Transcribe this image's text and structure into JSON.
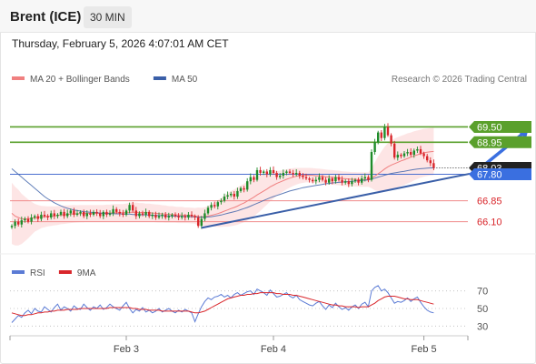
{
  "header": {
    "instrument": "Brent (ICE)",
    "timeframe": "30 MIN"
  },
  "datetime": "Thursday, February 5, 2026 4:07:01 AM CET",
  "colors": {
    "up": "#1e8c2a",
    "down": "#d9262b",
    "ma20": "#f08080",
    "band_fill": "#fde0e0",
    "ma50": "#3a5fa8",
    "resistance": "#5aa02c",
    "support": "#f08a8a",
    "pivot": "#4a6fd0",
    "trendline": "#3a5fa8",
    "rsi": "#5b7bd5",
    "rsi_ma": "#d9262b",
    "last_price": "#222222",
    "pivot_tag": "#3a6fe0"
  },
  "chart_data": [
    {
      "type": "candlestick",
      "legend": [
        {
          "label": "MA 20 + Bollinger Bands",
          "color": "#f08080"
        },
        {
          "label": "MA 50",
          "color": "#3a5fa8"
        }
      ],
      "credit": "Research © 2026 Trading Central",
      "x_ticks": [
        "Feb 3",
        "Feb 4",
        "Feb 5"
      ],
      "ylim": [
        65.5,
        70.2
      ],
      "levels": [
        {
          "value": 69.5,
          "label": "69.50",
          "kind": "resistance"
        },
        {
          "value": 68.95,
          "label": "68.95",
          "kind": "resistance"
        },
        {
          "value": 68.03,
          "label": "68.03",
          "kind": "last"
        },
        {
          "value": 67.8,
          "label": "67.80",
          "kind": "pivot"
        },
        {
          "value": 66.85,
          "label": "66.85",
          "kind": "support"
        },
        {
          "value": 66.1,
          "label": "66.10",
          "kind": "support"
        }
      ],
      "trendline": [
        [
          58,
          65.88
        ],
        [
          140,
          67.82
        ]
      ],
      "arrow": [
        [
          142,
          67.9
        ],
        [
          158,
          69.45
        ]
      ],
      "closes": [
        65.95,
        66.1,
        66.0,
        66.15,
        66.2,
        66.1,
        66.25,
        66.3,
        66.2,
        66.35,
        66.3,
        66.25,
        66.4,
        66.3,
        66.35,
        66.45,
        66.3,
        66.4,
        66.5,
        66.35,
        66.4,
        66.45,
        66.3,
        66.4,
        66.35,
        66.45,
        66.4,
        66.3,
        66.45,
        66.35,
        66.4,
        66.55,
        66.45,
        66.4,
        66.35,
        66.5,
        66.7,
        66.5,
        66.3,
        66.4,
        66.35,
        66.45,
        66.3,
        66.35,
        66.25,
        66.3,
        66.35,
        66.25,
        66.3,
        66.35,
        66.3,
        66.25,
        66.3,
        66.25,
        66.35,
        66.3,
        66.25,
        65.95,
        66.2,
        66.4,
        66.6,
        66.7,
        66.65,
        66.8,
        66.85,
        67.0,
        67.05,
        67.1,
        67.0,
        67.2,
        67.3,
        67.25,
        67.55,
        67.7,
        67.6,
        67.95,
        67.85,
        67.9,
        67.8,
        67.95,
        67.85,
        67.7,
        67.75,
        67.85,
        67.9,
        67.85,
        67.8,
        67.85,
        67.75,
        67.7,
        67.65,
        67.6,
        67.55,
        67.6,
        67.7,
        67.6,
        67.5,
        67.65,
        67.55,
        67.7,
        67.6,
        67.5,
        67.55,
        67.45,
        67.55,
        67.6,
        67.5,
        67.65,
        67.7,
        67.6,
        68.6,
        68.95,
        69.3,
        69.1,
        69.5,
        69.2,
        68.9,
        68.4,
        68.5,
        68.45,
        68.55,
        68.6,
        68.5,
        68.65,
        68.7,
        68.55,
        68.45,
        68.3,
        68.2,
        68.03
      ],
      "ma20": [
        66.4,
        66.3,
        66.25,
        66.2,
        66.2,
        66.2,
        66.22,
        66.24,
        66.25,
        66.27,
        66.28,
        66.29,
        66.3,
        66.31,
        66.32,
        66.34,
        66.35,
        66.36,
        66.37,
        66.38,
        66.38,
        66.39,
        66.39,
        66.4,
        66.4,
        66.4,
        66.4,
        66.4,
        66.4,
        66.41,
        66.41,
        66.42,
        66.42,
        66.42,
        66.42,
        66.43,
        66.44,
        66.44,
        66.44,
        66.43,
        66.43,
        66.42,
        66.42,
        66.41,
        66.4,
        66.39,
        66.38,
        66.37,
        66.36,
        66.36,
        66.35,
        66.34,
        66.34,
        66.33,
        66.33,
        66.32,
        66.31,
        66.28,
        66.27,
        66.28,
        66.3,
        66.33,
        66.36,
        66.39,
        66.43,
        66.48,
        66.52,
        66.57,
        66.61,
        66.66,
        66.72,
        66.77,
        66.84,
        66.91,
        66.98,
        67.06,
        67.13,
        67.2,
        67.27,
        67.35,
        67.41,
        67.47,
        67.52,
        67.57,
        67.62,
        67.66,
        67.7,
        67.73,
        67.75,
        67.76,
        67.77,
        67.77,
        67.76,
        67.75,
        67.74,
        67.73,
        67.71,
        67.7,
        67.69,
        67.68,
        67.67,
        67.65,
        67.64,
        67.63,
        67.62,
        67.62,
        67.61,
        67.61,
        67.61,
        67.61,
        67.66,
        67.73,
        67.82,
        67.9,
        67.99,
        68.07,
        68.13,
        68.18,
        68.23,
        68.28,
        68.32,
        68.37,
        68.41,
        68.46,
        68.5,
        68.54,
        68.57,
        68.59,
        68.61,
        68.62
      ],
      "band_width": [
        1.1,
        1.05,
        1.0,
        0.9,
        0.8,
        0.7,
        0.6,
        0.5,
        0.45,
        0.4,
        0.38,
        0.36,
        0.35,
        0.34,
        0.34,
        0.33,
        0.33,
        0.32,
        0.32,
        0.32,
        0.31,
        0.31,
        0.31,
        0.3,
        0.3,
        0.3,
        0.3,
        0.3,
        0.3,
        0.3,
        0.3,
        0.31,
        0.31,
        0.31,
        0.31,
        0.32,
        0.34,
        0.35,
        0.35,
        0.34,
        0.34,
        0.33,
        0.33,
        0.32,
        0.32,
        0.32,
        0.31,
        0.31,
        0.3,
        0.3,
        0.29,
        0.29,
        0.29,
        0.28,
        0.28,
        0.28,
        0.28,
        0.33,
        0.33,
        0.34,
        0.36,
        0.4,
        0.44,
        0.48,
        0.52,
        0.56,
        0.6,
        0.63,
        0.65,
        0.67,
        0.68,
        0.69,
        0.7,
        0.7,
        0.69,
        0.67,
        0.64,
        0.6,
        0.56,
        0.52,
        0.48,
        0.44,
        0.41,
        0.38,
        0.36,
        0.34,
        0.32,
        0.3,
        0.28,
        0.27,
        0.26,
        0.26,
        0.26,
        0.26,
        0.26,
        0.26,
        0.26,
        0.26,
        0.26,
        0.26,
        0.26,
        0.26,
        0.26,
        0.26,
        0.26,
        0.26,
        0.26,
        0.26,
        0.26,
        0.26,
        0.36,
        0.5,
        0.62,
        0.72,
        0.8,
        0.85,
        0.88,
        0.9,
        0.9,
        0.9,
        0.9,
        0.9,
        0.89,
        0.88,
        0.87,
        0.86,
        0.86,
        0.85,
        0.85,
        0.85
      ],
      "ma50": [
        68.0,
        67.9,
        67.8,
        67.7,
        67.6,
        67.5,
        67.4,
        67.3,
        67.2,
        67.1,
        67.0,
        66.92,
        66.85,
        66.78,
        66.72,
        66.67,
        66.62,
        66.58,
        66.55,
        66.52,
        66.5,
        66.48,
        66.46,
        66.45,
        66.44,
        66.43,
        66.42,
        66.41,
        66.4,
        66.4,
        66.39,
        66.39,
        66.38,
        66.38,
        66.37,
        66.37,
        66.37,
        66.36,
        66.36,
        66.35,
        66.35,
        66.34,
        66.34,
        66.33,
        66.33,
        66.32,
        66.32,
        66.31,
        66.31,
        66.3,
        66.3,
        66.3,
        66.29,
        66.29,
        66.28,
        66.28,
        66.27,
        66.26,
        66.26,
        66.26,
        66.27,
        66.28,
        66.3,
        66.32,
        66.34,
        66.37,
        66.4,
        66.43,
        66.46,
        66.49,
        66.53,
        66.57,
        66.61,
        66.66,
        66.71,
        66.76,
        66.81,
        66.86,
        66.91,
        66.96,
        67.0,
        67.04,
        67.08,
        67.12,
        67.16,
        67.2,
        67.23,
        67.26,
        67.29,
        67.32,
        67.34,
        67.36,
        67.38,
        67.4,
        67.42,
        67.44,
        67.46,
        67.47,
        67.49,
        67.5,
        67.51,
        67.52,
        67.53,
        67.54,
        67.55,
        67.56,
        67.57,
        67.58,
        67.59,
        67.6,
        67.63,
        67.66,
        67.7,
        67.73,
        67.77,
        67.8,
        67.83,
        67.85,
        67.87,
        67.89,
        67.91,
        67.93,
        67.95,
        67.97,
        67.99,
        68.0,
        68.01,
        68.02,
        68.03,
        68.03
      ]
    },
    {
      "type": "line",
      "legend": [
        {
          "label": "RSI",
          "color": "#5b7bd5"
        },
        {
          "label": "9MA",
          "color": "#d9262b"
        }
      ],
      "y_ticks": [
        "70",
        "50",
        "30"
      ],
      "ylim": [
        20,
        80
      ],
      "rsi": [
        34,
        38,
        42,
        40,
        45,
        48,
        44,
        50,
        47,
        46,
        52,
        49,
        46,
        51,
        55,
        48,
        52,
        50,
        47,
        53,
        50,
        49,
        55,
        51,
        48,
        52,
        50,
        54,
        49,
        51,
        55,
        52,
        50,
        48,
        53,
        57,
        50,
        45,
        49,
        47,
        51,
        46,
        48,
        45,
        47,
        50,
        46,
        48,
        50,
        47,
        45,
        48,
        46,
        49,
        47,
        45,
        35,
        44,
        52,
        58,
        62,
        60,
        63,
        64,
        66,
        63,
        65,
        62,
        66,
        68,
        65,
        67,
        69,
        70,
        66,
        72,
        70,
        68,
        65,
        71,
        67,
        63,
        64,
        66,
        68,
        64,
        62,
        65,
        60,
        58,
        56,
        54,
        53,
        56,
        58,
        53,
        49,
        54,
        51,
        56,
        52,
        49,
        51,
        48,
        52,
        54,
        50,
        55,
        57,
        52,
        70,
        74,
        76,
        70,
        72,
        68,
        62,
        56,
        58,
        57,
        59,
        62,
        58,
        61,
        63,
        57,
        52,
        48,
        46,
        45
      ],
      "rsi_ma": [
        45,
        44,
        43,
        42,
        42,
        43,
        43,
        44,
        45,
        45,
        46,
        46,
        47,
        47,
        48,
        48,
        48,
        49,
        49,
        49,
        49,
        50,
        50,
        50,
        50,
        50,
        50,
        50,
        50,
        50,
        51,
        51,
        51,
        51,
        51,
        51,
        51,
        50,
        50,
        49,
        49,
        49,
        48,
        48,
        48,
        48,
        47,
        47,
        47,
        47,
        47,
        47,
        47,
        47,
        47,
        46,
        45,
        45,
        46,
        47,
        49,
        51,
        53,
        55,
        57,
        59,
        61,
        62,
        63,
        64,
        65,
        65,
        66,
        66,
        67,
        67,
        68,
        68,
        68,
        68,
        68,
        67,
        67,
        66,
        66,
        66,
        65,
        65,
        64,
        63,
        62,
        61,
        60,
        59,
        58,
        57,
        56,
        55,
        54,
        54,
        53,
        53,
        52,
        52,
        52,
        52,
        51,
        52,
        52,
        52,
        54,
        56,
        59,
        61,
        63,
        64,
        64,
        64,
        63,
        62,
        61,
        61,
        60,
        60,
        60,
        59,
        58,
        57,
        56,
        55
      ]
    }
  ]
}
